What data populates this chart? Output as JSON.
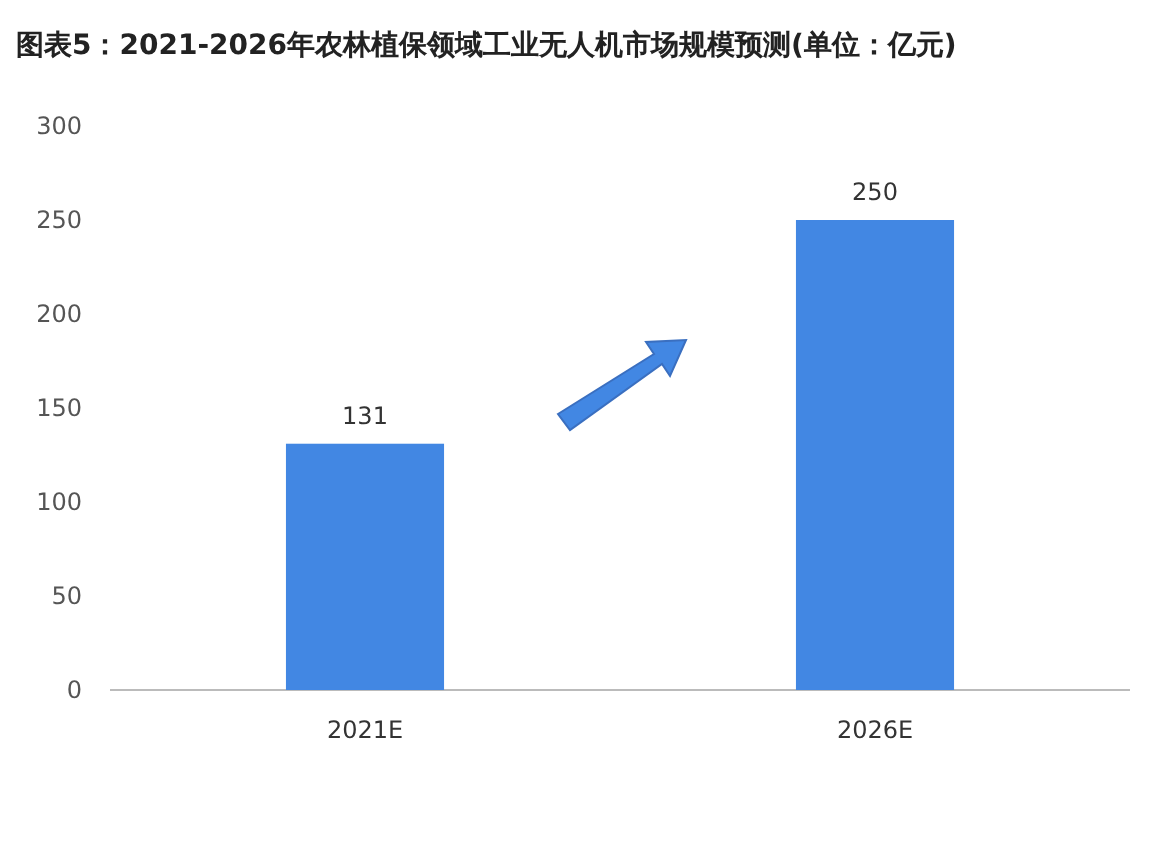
{
  "chart_data": {
    "type": "bar",
    "title": "图表5：2021-2026年农林植保领域工业无人机市场规模预测(单位：亿元)",
    "categories": [
      "2021E",
      "2026E"
    ],
    "values": [
      131,
      250
    ],
    "color": "#4287e3",
    "ylim": [
      0,
      300
    ],
    "yticks": [
      0,
      50,
      100,
      150,
      200,
      250,
      300
    ],
    "grid": false,
    "data_labels": true
  }
}
